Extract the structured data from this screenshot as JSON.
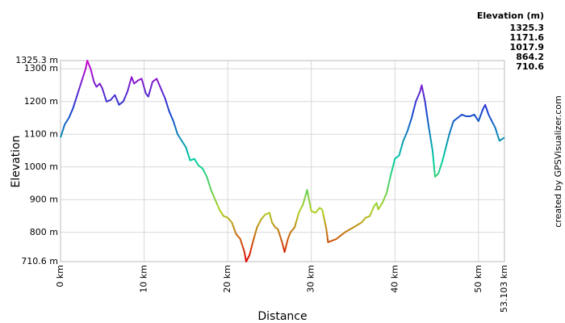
{
  "chart_data": {
    "type": "line",
    "x_label": "Distance",
    "y_label": "Elevation",
    "watermark": "created by GPSVisualizer.com",
    "color_scale": {
      "title": "Elevation (m)",
      "stops": [
        {
          "value": 1325.3,
          "color": "#d000d0"
        },
        {
          "value": 1171.6,
          "color": "#1a40d0"
        },
        {
          "value": 1017.9,
          "color": "#00d0a0"
        },
        {
          "value": 864.2,
          "color": "#b0d020"
        },
        {
          "value": 710.6,
          "color": "#e00000"
        }
      ]
    },
    "xlim": [
      0,
      53.103
    ],
    "ylim": [
      710.6,
      1325.3
    ],
    "xticks": [
      {
        "value": 0,
        "label": "0 km"
      },
      {
        "value": 10,
        "label": "10 km"
      },
      {
        "value": 20,
        "label": "20 km"
      },
      {
        "value": 30,
        "label": "30 km"
      },
      {
        "value": 40,
        "label": "40 km"
      },
      {
        "value": 50,
        "label": "50 km"
      },
      {
        "value": 53.103,
        "label": "53.103 km"
      }
    ],
    "yticks": [
      {
        "value": 710.6,
        "label": "710.6 m"
      },
      {
        "value": 800,
        "label": "800 m"
      },
      {
        "value": 900,
        "label": "900 m"
      },
      {
        "value": 1000,
        "label": "1000 m"
      },
      {
        "value": 1100,
        "label": "1100 m"
      },
      {
        "value": 1200,
        "label": "1200 m"
      },
      {
        "value": 1300,
        "label": "1300 m"
      },
      {
        "value": 1325.3,
        "label": "1325.3 m"
      }
    ],
    "grid": true,
    "x": [
      0,
      0.5,
      1,
      1.5,
      2,
      2.5,
      3,
      3.2,
      3.6,
      4,
      4.3,
      4.7,
      5,
      5.5,
      6,
      6.5,
      7,
      7.5,
      8,
      8.5,
      8.8,
      9.3,
      9.7,
      10.2,
      10.5,
      11,
      11.5,
      12,
      12.5,
      13,
      13.5,
      14,
      14.5,
      15,
      15.5,
      16,
      16.5,
      17,
      17.5,
      18,
      18.5,
      19,
      19.5,
      20,
      20.5,
      21,
      21.5,
      22,
      22.2,
      22.6,
      23,
      23.5,
      24,
      24.5,
      25,
      25.3,
      25.7,
      26,
      26.5,
      26.8,
      27.2,
      27.5,
      28,
      28.5,
      29,
      29.5,
      29.8,
      30,
      30.5,
      31,
      31.3,
      31.8,
      32,
      32.5,
      33,
      33.5,
      34,
      35,
      36,
      36.5,
      37,
      37.5,
      37.8,
      38,
      38.5,
      39,
      39.5,
      40,
      40.5,
      41,
      41.5,
      42,
      42.5,
      43,
      43.2,
      43.6,
      44,
      44.5,
      44.8,
      45.2,
      45.7,
      46,
      46.5,
      47,
      47.5,
      48,
      48.5,
      49,
      49.5,
      50,
      50.5,
      50.8,
      51.2,
      51.5,
      52,
      52.5,
      53.103
    ],
    "values": [
      1090,
      1130,
      1150,
      1180,
      1220,
      1260,
      1300,
      1325.3,
      1300,
      1260,
      1245,
      1255,
      1240,
      1200,
      1205,
      1220,
      1190,
      1200,
      1230,
      1275,
      1255,
      1265,
      1270,
      1225,
      1215,
      1260,
      1270,
      1240,
      1210,
      1170,
      1140,
      1100,
      1080,
      1060,
      1020,
      1025,
      1005,
      995,
      970,
      930,
      900,
      870,
      850,
      845,
      830,
      795,
      780,
      740,
      710.6,
      730,
      770,
      815,
      840,
      855,
      860,
      830,
      815,
      810,
      770,
      740,
      780,
      800,
      815,
      860,
      885,
      930,
      890,
      865,
      860,
      875,
      870,
      810,
      770,
      775,
      780,
      790,
      800,
      815,
      830,
      845,
      850,
      880,
      890,
      870,
      890,
      920,
      975,
      1025,
      1035,
      1080,
      1110,
      1150,
      1200,
      1230,
      1250,
      1200,
      1130,
      1050,
      970,
      980,
      1020,
      1050,
      1100,
      1140,
      1150,
      1160,
      1155,
      1155,
      1160,
      1140,
      1175,
      1190,
      1160,
      1145,
      1120,
      1080,
      1090
    ]
  }
}
